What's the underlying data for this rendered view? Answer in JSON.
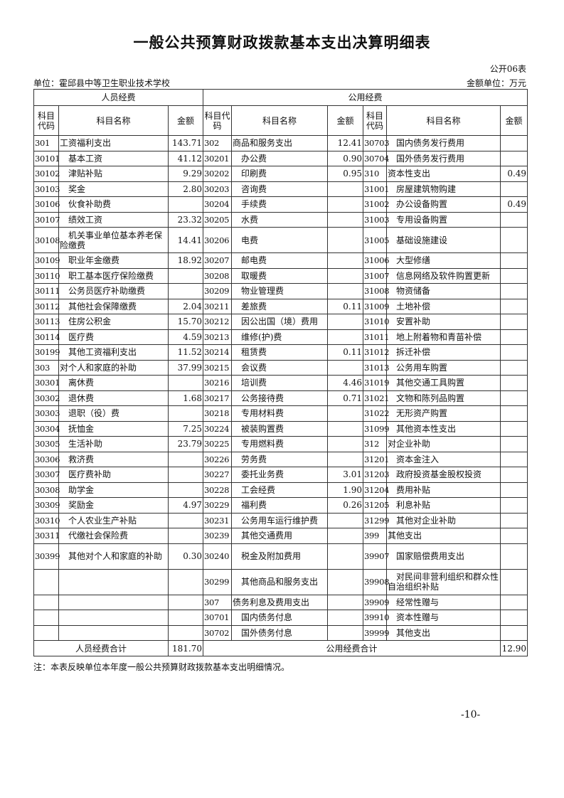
{
  "title": "一般公共预算财政拨款基本支出决算明细表",
  "table_no": "公开06表",
  "unit": "单位：霍邱县中等卫生职业技术学校",
  "money_unit": "金额单位：万元",
  "groups": {
    "personnel": "人员经费",
    "public": "公用经费"
  },
  "headers": {
    "code": "科目代码",
    "name": "科目名称",
    "amount": "金额"
  },
  "rows": [
    [
      "301",
      "工资福利支出",
      "143.71",
      "302",
      "商品和服务支出",
      "12.41",
      "30703",
      "国内债务发行费用",
      ""
    ],
    [
      "30101",
      "基本工资",
      "41.12",
      "30201",
      "办公费",
      "0.90",
      "30704",
      "国外债务发行费用",
      ""
    ],
    [
      "30102",
      "津贴补贴",
      "9.29",
      "30202",
      "印刷费",
      "0.95",
      "310",
      "资本性支出",
      "0.49"
    ],
    [
      "30103",
      "奖金",
      "2.80",
      "30203",
      "咨询费",
      "",
      "31001",
      "房屋建筑物购建",
      ""
    ],
    [
      "30106",
      "伙食补助费",
      "",
      "30204",
      "手续费",
      "",
      "31002",
      "办公设备购置",
      "0.49"
    ],
    [
      "30107",
      "绩效工资",
      "23.32",
      "30205",
      "水费",
      "",
      "31003",
      "专用设备购置",
      ""
    ],
    [
      "30108",
      "机关事业单位基本养老保险缴费",
      "14.41",
      "30206",
      "电费",
      "",
      "31005",
      "基础设施建设",
      ""
    ],
    [
      "30109",
      "职业年金缴费",
      "18.92",
      "30207",
      "邮电费",
      "",
      "31006",
      "大型修缮",
      ""
    ],
    [
      "30110",
      "职工基本医疗保险缴费",
      "",
      "30208",
      "取暖费",
      "",
      "31007",
      "信息网络及软件购置更新",
      ""
    ],
    [
      "30111",
      "公务员医疗补助缴费",
      "",
      "30209",
      "物业管理费",
      "",
      "31008",
      "物资储备",
      ""
    ],
    [
      "30112",
      "其他社会保障缴费",
      "2.04",
      "30211",
      "差旅费",
      "0.11",
      "31009",
      "土地补偿",
      ""
    ],
    [
      "30113",
      "住房公积金",
      "15.70",
      "30212",
      "因公出国（境）费用",
      "",
      "31010",
      "安置补助",
      ""
    ],
    [
      "30114",
      "医疗费",
      "4.59",
      "30213",
      "维修(护)费",
      "",
      "31011",
      "地上附着物和青苗补偿",
      ""
    ],
    [
      "30199",
      "其他工资福利支出",
      "11.52",
      "30214",
      "租赁费",
      "0.11",
      "31012",
      "拆迁补偿",
      ""
    ],
    [
      "303",
      "对个人和家庭的补助",
      "37.99",
      "30215",
      "会议费",
      "",
      "31013",
      "公务用车购置",
      ""
    ],
    [
      "30301",
      "离休费",
      "",
      "30216",
      "培训费",
      "4.46",
      "31019",
      "其他交通工具购置",
      ""
    ],
    [
      "30302",
      "退休费",
      "1.68",
      "30217",
      "公务接待费",
      "0.71",
      "31021",
      "文物和陈列品购置",
      ""
    ],
    [
      "30303",
      "退职（役）费",
      "",
      "30218",
      "专用材料费",
      "",
      "31022",
      "无形资产购置",
      ""
    ],
    [
      "30304",
      "抚恤金",
      "7.25",
      "30224",
      "被装购置费",
      "",
      "31099",
      "其他资本性支出",
      ""
    ],
    [
      "30305",
      "生活补助",
      "23.79",
      "30225",
      "专用燃料费",
      "",
      "312",
      "对企业补助",
      ""
    ],
    [
      "30306",
      "救济费",
      "",
      "30226",
      "劳务费",
      "",
      "31201",
      "资本金注入",
      ""
    ],
    [
      "30307",
      "医疗费补助",
      "",
      "30227",
      "委托业务费",
      "3.01",
      "31203",
      "政府投资基金股权投资",
      ""
    ],
    [
      "30308",
      "助学金",
      "",
      "30228",
      "工会经费",
      "1.90",
      "31204",
      "费用补贴",
      ""
    ],
    [
      "30309",
      "奖励金",
      "4.97",
      "30229",
      "福利费",
      "0.26",
      "31205",
      "利息补贴",
      ""
    ],
    [
      "30310",
      "个人农业生产补贴",
      "",
      "30231",
      "公务用车运行维护费",
      "",
      "31299",
      "其他对企业补助",
      ""
    ],
    [
      "30311",
      "代缴社会保险费",
      "",
      "30239",
      "其他交通费用",
      "",
      "399",
      "其他支出",
      ""
    ],
    [
      "30399",
      "其他对个人和家庭的补助",
      "0.30",
      "30240",
      "税金及附加费用",
      "",
      "39907",
      "国家赔偿费用支出",
      ""
    ],
    [
      "",
      "",
      "",
      "30299",
      "其他商品和服务支出",
      "",
      "39908",
      "对民间非营利组织和群众性自治组织补贴",
      ""
    ],
    [
      "",
      "",
      "",
      "307",
      "债务利息及费用支出",
      "",
      "39909",
      "经常性赠与",
      ""
    ],
    [
      "",
      "",
      "",
      "30701",
      "国内债务付息",
      "",
      "39910",
      "资本性赠与",
      ""
    ],
    [
      "",
      "",
      "",
      "30702",
      "国外债务付息",
      "",
      "39999",
      "其他支出",
      ""
    ]
  ],
  "totals": {
    "personnel_label": "人员经费合计",
    "personnel_amount": "181.70",
    "public_label": "公用经费合计",
    "public_amount": "12.90"
  },
  "note": "注：本表反映单位本年度一般公共预算财政拨款基本支出明细情况。",
  "page_number": "-10-"
}
